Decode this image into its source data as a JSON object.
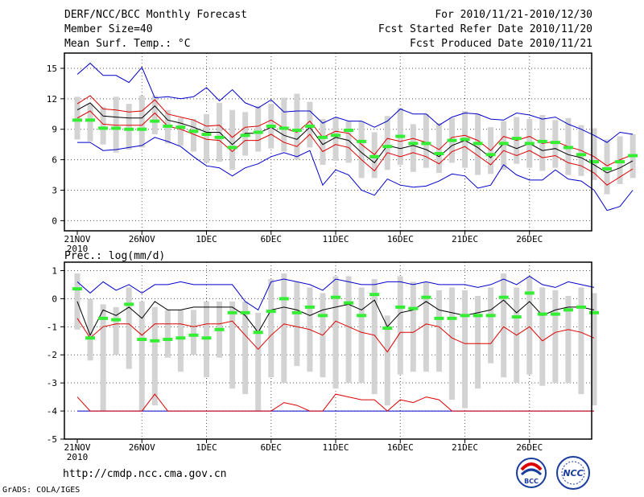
{
  "header": {
    "title": "DERF/NCC/BCC Monthly Forecast",
    "member_size": "Member Size=40",
    "variable": "Mean Surf. Temp.: °C",
    "for_range": "For 2010/11/21-2010/12/30",
    "fcst_started": "Fcst Started Refer Date 2010/11/20",
    "fcst_produced": "Fcst Produced Date 2010/11/21"
  },
  "footer": {
    "url": "http://cmdp.ncc.cma.gov.cn",
    "grads": "GrADS: COLA/IGES"
  },
  "logos": {
    "left_text": "BCC",
    "right_text": "NCC"
  },
  "colors": {
    "box": "#d3d3d3",
    "median": "#33ee33",
    "mean": "#000000",
    "sigma": "#dd0000",
    "extreme": "#0000cc"
  },
  "chart_data": [
    {
      "type": "box-ensemble",
      "title": "Mean Surf. Temp.: °C",
      "xlabel": "",
      "ylabel": "°C",
      "ylim": [
        -1,
        16.5
      ],
      "yticks": [
        0,
        3,
        6,
        9,
        12,
        15
      ],
      "xticklabels": [
        "21NOV",
        "26NOV",
        "1DEC",
        "6DEC",
        "11DEC",
        "16DEC",
        "21DEC",
        "26DEC"
      ],
      "year_label": "2010",
      "median": [
        9.9,
        9.9,
        9.1,
        9.1,
        9,
        9,
        9.8,
        9.3,
        9.2,
        8.8,
        8.5,
        8.2,
        7.2,
        8.4,
        8.7,
        9.3,
        9.1,
        8.9,
        9.3,
        8.2,
        8.4,
        8.9,
        7.8,
        6.3,
        7.3,
        8.3,
        7.6,
        7.6,
        6.6,
        7.9,
        8.0,
        7.6,
        6.5,
        7.6,
        8.1,
        7.6,
        7.8,
        7.7,
        7.2,
        6.5,
        5.8,
        5.1,
        5.8,
        6.4
      ],
      "box_low": [
        8,
        7.8,
        7.5,
        6.7,
        7.0,
        7.2,
        8.5,
        7.6,
        7.4,
        6.8,
        5.7,
        5.8,
        5.0,
        6.4,
        6.8,
        7.1,
        6.8,
        6.0,
        7.2,
        5.5,
        5.9,
        5.7,
        4.2,
        4.2,
        5.0,
        5.5,
        4.8,
        5.2,
        4.7,
        5.7,
        5.2,
        4.5,
        4.6,
        5.0,
        5.6,
        5.2,
        4.9,
        5.2,
        4.5,
        4.4,
        4.0,
        2.6,
        3.6,
        4.2
      ],
      "box_high": [
        12.2,
        11.5,
        11.2,
        12.2,
        11.5,
        12.3,
        12.3,
        10.9,
        10.1,
        10.0,
        10.5,
        11.6,
        10.9,
        10.7,
        11.3,
        11.5,
        12.1,
        12.5,
        11.7,
        10.0,
        10.1,
        9.8,
        9.8,
        8.7,
        10.3,
        11.1,
        9.5,
        10.5,
        9.6,
        10.1,
        10.8,
        10.5,
        9.2,
        9.8,
        10.2,
        10.0,
        10.4,
        9.9,
        10.1,
        9.4,
        9.1,
        8.0,
        8.3,
        8.5
      ],
      "mean": [
        10.9,
        11.6,
        10.3,
        10.2,
        10.1,
        10.1,
        11.3,
        9.9,
        9.6,
        9.2,
        8.7,
        8.7,
        7.5,
        8.6,
        8.6,
        9.2,
        8.4,
        8.0,
        9.2,
        7.5,
        8.2,
        7.9,
        6.7,
        5.7,
        7.4,
        7.1,
        7.4,
        7.0,
        6.3,
        7.4,
        7.9,
        7.2,
        6.2,
        7.6,
        7.1,
        7.6,
        6.9,
        7.1,
        6.5,
        6.2,
        5.5,
        4.7,
        5.2,
        5.9
      ],
      "sigma_upper": [
        11.5,
        12.3,
        11.0,
        10.9,
        10.7,
        10.8,
        11.9,
        10.5,
        10.2,
        9.9,
        9.3,
        9.4,
        8.2,
        9.2,
        9.3,
        9.9,
        9.1,
        8.7,
        9.8,
        8.2,
        8.8,
        8.6,
        7.5,
        6.5,
        8.1,
        7.8,
        8.1,
        7.7,
        7.0,
        8.2,
        8.4,
        7.9,
        6.9,
        8.3,
        7.9,
        8.3,
        7.6,
        7.8,
        7.3,
        6.9,
        6.3,
        5.4,
        6.0,
        6.5
      ],
      "sigma_lower": [
        10.1,
        10.8,
        9.5,
        9.4,
        9.4,
        9.4,
        10.6,
        9.3,
        9.0,
        8.5,
        8.0,
        7.9,
        6.8,
        7.9,
        7.9,
        8.5,
        7.7,
        7.3,
        8.5,
        6.8,
        7.5,
        7.2,
        6.0,
        4.9,
        6.7,
        6.3,
        6.7,
        6.3,
        5.6,
        6.8,
        7.3,
        6.4,
        5.5,
        6.9,
        6.4,
        6.9,
        6.2,
        6.4,
        5.7,
        5.4,
        4.7,
        3.5,
        4.3,
        5.1
      ],
      "max": [
        14.4,
        15.5,
        14.3,
        14.3,
        13.6,
        15.1,
        12.1,
        12.2,
        12.0,
        12.2,
        13.1,
        11.8,
        12.9,
        11.6,
        11.1,
        11.9,
        10.7,
        10.8,
        10.8,
        9.6,
        10.2,
        9.8,
        9.8,
        9.2,
        9.8,
        11.0,
        10.5,
        10.5,
        9.4,
        10.2,
        10.6,
        10.5,
        10.0,
        9.9,
        10.6,
        10.4,
        10.0,
        10.2,
        9.5,
        9.0,
        8.4,
        7.7,
        8.7,
        8.5
      ],
      "min": [
        7.7,
        7.7,
        6.9,
        7.0,
        7.2,
        7.4,
        8.2,
        7.8,
        7.3,
        6.3,
        5.4,
        5.2,
        4.4,
        5.2,
        5.6,
        6.3,
        6.7,
        6.3,
        6.9,
        3.5,
        5.0,
        4.5,
        3.0,
        2.5,
        4.1,
        3.5,
        3.3,
        3.4,
        3.9,
        4.6,
        4.4,
        3.2,
        3.5,
        5.5,
        4.5,
        4.0,
        4.0,
        5.0,
        4.1,
        3.9,
        3.0,
        1.0,
        1.4,
        3.0
      ]
    },
    {
      "type": "box-ensemble",
      "title": "Prec.: log(mm/d)",
      "xlabel": "",
      "ylabel": "log(mm/d)",
      "ylim": [
        -5,
        1.3
      ],
      "yticks": [
        -5,
        -4,
        -3,
        -2,
        -1,
        0,
        1
      ],
      "xticklabels": [
        "21NOV",
        "26NOV",
        "1DEC",
        "6DEC",
        "11DEC",
        "16DEC",
        "21DEC",
        "26DEC"
      ],
      "year_label": "2010",
      "median": [
        0.35,
        -1.4,
        -0.7,
        -0.75,
        -0.2,
        -1.45,
        -1.5,
        -1.45,
        -1.4,
        -1.3,
        -1.4,
        -1.1,
        -0.5,
        -0.5,
        -1.2,
        -0.45,
        0.0,
        -0.5,
        -0.3,
        -0.6,
        0.05,
        -0.15,
        -0.6,
        0.15,
        -1.05,
        -0.3,
        -0.35,
        0.05,
        -0.7,
        -0.7,
        -0.6,
        -0.6,
        -0.6,
        0.05,
        -0.65,
        0.2,
        -0.55,
        -0.55,
        -0.4,
        -0.3,
        -0.5
      ],
      "box_low": [
        -1.1,
        -2.2,
        -4.0,
        -2.0,
        -2.5,
        -4.0,
        -3.8,
        -2.1,
        -2.6,
        -2.0,
        -2.8,
        -2.1,
        -3.2,
        -3.4,
        -4.0,
        -2.8,
        -3.0,
        -2.4,
        -2.6,
        -2.8,
        -3.2,
        -3.0,
        -3.0,
        -3.4,
        -3.8,
        -2.7,
        -2.6,
        -2.6,
        -2.6,
        -3.6,
        -3.9,
        -3.2,
        -2.3,
        -2.8,
        -3.0,
        -2.7,
        -3.1,
        -3.0,
        -3.0,
        -3.4,
        -3.8
      ],
      "box_high": [
        0.9,
        0.0,
        -0.2,
        -0.3,
        0.4,
        -0.1,
        -0.3,
        -0.4,
        -0.4,
        -0.4,
        -0.1,
        -0.1,
        -0.1,
        -0.1,
        -0.5,
        0.7,
        0.9,
        0.6,
        0.4,
        0.2,
        0.8,
        0.8,
        0.4,
        0.7,
        -0.6,
        0.8,
        0.6,
        0.6,
        0.3,
        0.4,
        0.3,
        0.1,
        0.4,
        0.9,
        0.4,
        0.8,
        0.4,
        0.3,
        0.1,
        0.4,
        0.2
      ],
      "mean": [
        -0.1,
        -1.3,
        -0.4,
        -0.6,
        -0.3,
        -0.7,
        -0.1,
        -0.4,
        -0.4,
        -0.3,
        -0.3,
        -0.3,
        -0.3,
        -0.6,
        -1.2,
        -0.4,
        -0.3,
        -0.4,
        -0.6,
        -0.4,
        -0.3,
        -0.2,
        -0.4,
        -0.05,
        -1.0,
        -0.5,
        -0.4,
        -0.1,
        -0.4,
        -0.5,
        -0.6,
        -0.5,
        -0.4,
        -0.05,
        -0.5,
        -0.1,
        -0.6,
        -0.4,
        -0.3,
        -0.3,
        -0.4
      ],
      "sigma_upper": [
        -0.7,
        -1.4,
        -1.0,
        -0.9,
        -0.9,
        -1.3,
        -0.9,
        -0.9,
        -0.9,
        -1.0,
        -0.9,
        -0.9,
        -0.8,
        -1.3,
        -1.8,
        -1.3,
        -0.9,
        -1.0,
        -1.1,
        -1.3,
        -0.8,
        -1.0,
        -1.2,
        -1.3,
        -1.9,
        -1.2,
        -1.2,
        -0.9,
        -1.0,
        -1.4,
        -1.6,
        -1.6,
        -1.6,
        -1.0,
        -1.3,
        -1.0,
        -1.5,
        -1.2,
        -1.1,
        -1.2,
        -1.4
      ],
      "sigma_lower": [
        -3.5,
        -4.0,
        -4.0,
        -4.0,
        -4.0,
        -4.0,
        -3.4,
        -4.0,
        -4.0,
        -4.0,
        -4.0,
        -4.0,
        -4.0,
        -4.0,
        -4.0,
        -4.0,
        -3.7,
        -3.8,
        -4.0,
        -4.0,
        -3.4,
        -3.5,
        -3.6,
        -3.6,
        -4.0,
        -3.6,
        -3.7,
        -3.5,
        -3.6,
        -4.0,
        -4.0,
        -4.0,
        -4.0,
        -4.0,
        -4.0,
        -4.0,
        -4.0,
        -4.0,
        -4.0,
        -4.0,
        -4.0
      ],
      "max": [
        0.6,
        0.2,
        0.6,
        0.3,
        0.5,
        0.2,
        0.5,
        0.5,
        0.6,
        0.5,
        0.5,
        0.5,
        0.5,
        -0.1,
        -0.4,
        0.6,
        0.7,
        0.6,
        0.5,
        0.3,
        0.7,
        0.6,
        0.5,
        0.5,
        0.6,
        0.6,
        0.5,
        0.6,
        0.5,
        0.5,
        0.5,
        0.4,
        0.5,
        0.7,
        0.5,
        0.8,
        0.5,
        0.4,
        0.6,
        0.5,
        0.4
      ],
      "min": [
        -4.0,
        -4.0,
        -4.0,
        -4.0,
        -4.0,
        -4.0,
        -4.0,
        -4.0,
        -4.0,
        -4.0,
        -4.0,
        -4.0,
        -4.0,
        -4.0,
        -4.0,
        -4.0,
        -4.0,
        -4.0,
        -4.0,
        -4.0,
        -4.0,
        -4.0,
        -4.0,
        -4.0,
        -4.0,
        -4.0,
        -4.0,
        -4.0,
        -4.0,
        -4.0,
        -4.0,
        -4.0,
        -4.0,
        -4.0,
        -4.0,
        -4.0,
        -4.0,
        -4.0,
        -4.0,
        -4.0,
        -4.0
      ]
    }
  ]
}
